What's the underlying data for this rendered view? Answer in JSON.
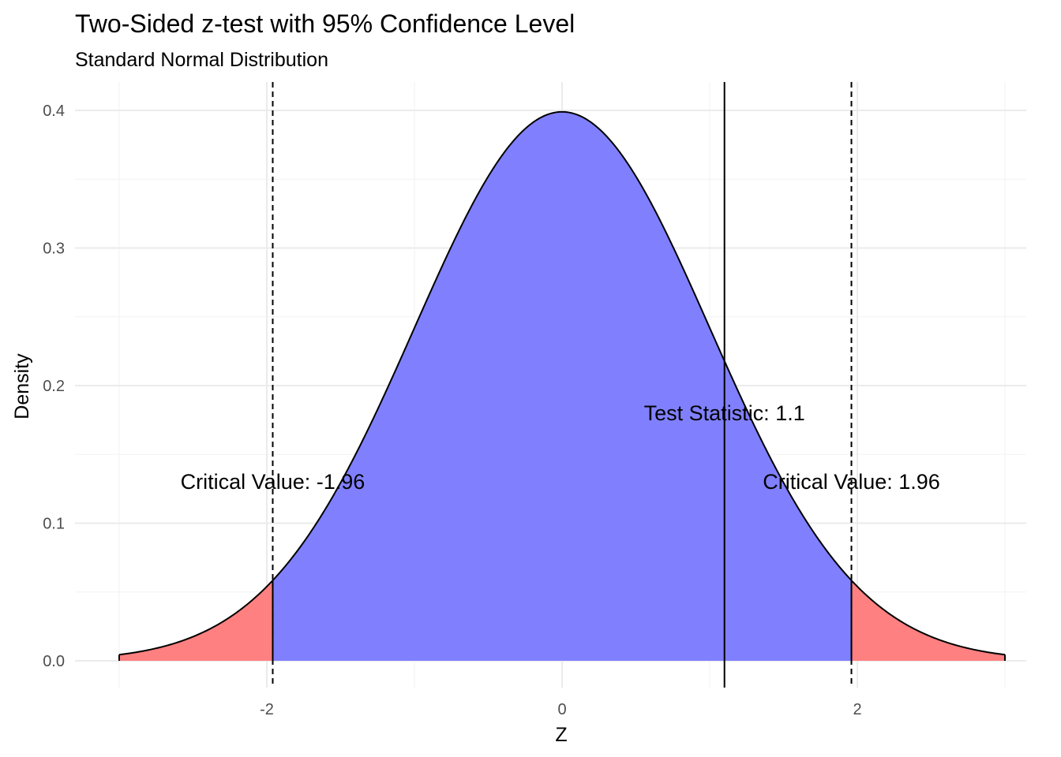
{
  "chart_data": {
    "type": "area",
    "title": "Two-Sided z-test with 95% Confidence Level",
    "subtitle": "Standard Normal Distribution",
    "xlabel": "Z",
    "ylabel": "Density",
    "xlim": [
      -3,
      3
    ],
    "ylim": [
      0,
      0.4
    ],
    "x_ticks": [
      {
        "value": -2,
        "label": "-2"
      },
      {
        "value": 0,
        "label": "0"
      },
      {
        "value": 2,
        "label": "2"
      }
    ],
    "y_ticks": [
      {
        "value": 0.0,
        "label": "0.0"
      },
      {
        "value": 0.1,
        "label": "0.1"
      },
      {
        "value": 0.2,
        "label": "0.2"
      },
      {
        "value": 0.3,
        "label": "0.3"
      },
      {
        "value": 0.4,
        "label": "0.4"
      }
    ],
    "curve": {
      "x": [
        -3.0,
        -2.75,
        -2.5,
        -2.25,
        -1.96,
        -1.75,
        -1.5,
        -1.25,
        -1.0,
        -0.75,
        -0.5,
        -0.25,
        0.0,
        0.25,
        0.5,
        0.75,
        1.0,
        1.1,
        1.25,
        1.5,
        1.75,
        1.96,
        2.25,
        2.5,
        2.75,
        3.0
      ],
      "y": [
        0.0044,
        0.0091,
        0.0175,
        0.0317,
        0.0584,
        0.0863,
        0.1295,
        0.1826,
        0.242,
        0.3011,
        0.3521,
        0.3867,
        0.3989,
        0.3867,
        0.3521,
        0.3011,
        0.242,
        0.2179,
        0.1826,
        0.1295,
        0.0863,
        0.0584,
        0.0317,
        0.0175,
        0.0091,
        0.0044
      ]
    },
    "regions": [
      {
        "from": -3,
        "to": -1.96,
        "color": "#ff8080"
      },
      {
        "from": -1.96,
        "to": 1.96,
        "color": "#8080ff"
      },
      {
        "from": 1.96,
        "to": 3,
        "color": "#ff8080"
      }
    ],
    "critical_values": [
      -1.96,
      1.96
    ],
    "test_statistic": 1.1,
    "annotations": [
      {
        "text": "Critical Value: -1.96",
        "x": -1.96,
        "y": 0.13
      },
      {
        "text": "Critical Value: 1.96",
        "x": 1.96,
        "y": 0.13
      },
      {
        "text": "Test Statistic: 1.1",
        "x": 1.1,
        "y": 0.18
      }
    ],
    "grid": true,
    "legend": "none"
  }
}
